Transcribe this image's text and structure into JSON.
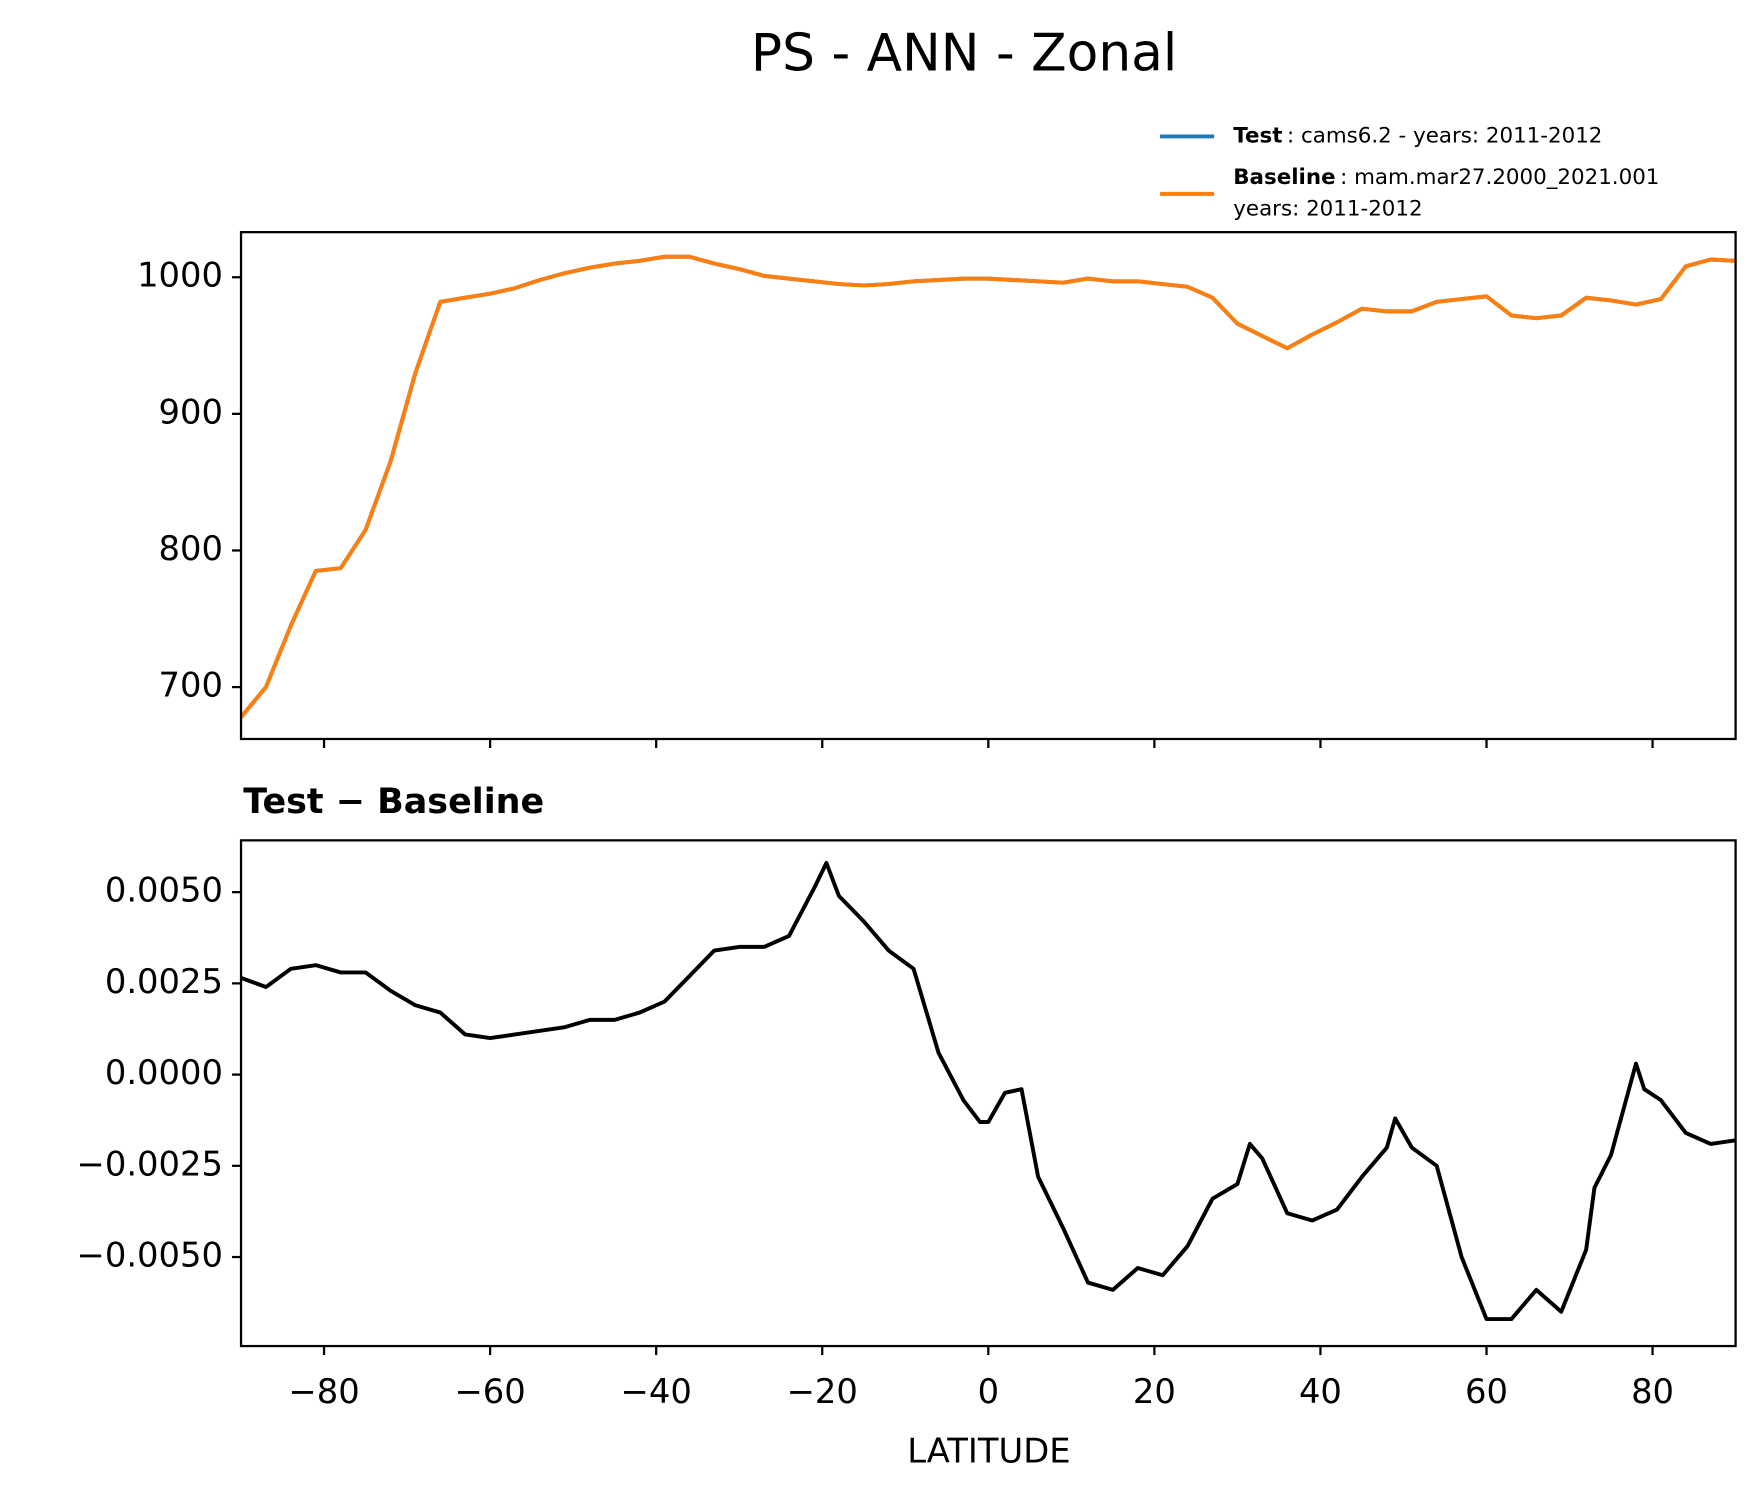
{
  "chart_data": [
    {
      "type": "line",
      "title": "PS - ANN - Zonal",
      "x": [
        -90,
        -87,
        -84,
        -81,
        -78,
        -75,
        -72,
        -69,
        -66,
        -63,
        -60,
        -57,
        -54,
        -51,
        -48,
        -45,
        -42,
        -39,
        -36,
        -33,
        -30,
        -27,
        -24,
        -21,
        -18,
        -15,
        -12,
        -9,
        -6,
        -3,
        0,
        3,
        6,
        9,
        12,
        15,
        18,
        21,
        24,
        27,
        30,
        33,
        36,
        39,
        42,
        45,
        48,
        51,
        54,
        57,
        60,
        63,
        66,
        69,
        72,
        75,
        78,
        81,
        84,
        87,
        90
      ],
      "series": [
        {
          "name": "Test",
          "description": [
            ": cams6.2 - years: 2011-2012"
          ],
          "color": "#1f77b4",
          "values": [
            678,
            700,
            745,
            785,
            787,
            815,
            865,
            930,
            982,
            985,
            988,
            992,
            998,
            1003,
            1007,
            1010,
            1012,
            1015,
            1015,
            1010,
            1006,
            1001,
            999,
            997,
            995,
            994,
            995,
            997,
            998,
            999,
            999,
            998,
            997,
            996,
            999,
            997,
            997,
            995,
            993,
            985,
            966,
            957,
            948,
            958,
            967,
            977,
            975,
            975,
            982,
            984,
            986,
            972,
            970,
            972,
            985,
            983,
            980,
            984,
            1008,
            1013,
            1012
          ]
        },
        {
          "name": "Baseline",
          "description": [
            ": mam.mar27.2000_2021.001",
            "years: 2011-2012"
          ],
          "color": "#ff7f0e",
          "values": [
            678,
            700,
            745,
            785,
            787,
            815,
            865,
            930,
            982,
            985,
            988,
            992,
            998,
            1003,
            1007,
            1010,
            1012,
            1015,
            1015,
            1010,
            1006,
            1001,
            999,
            997,
            995,
            994,
            995,
            997,
            998,
            999,
            999,
            998,
            997,
            996,
            999,
            997,
            997,
            995,
            993,
            985,
            966,
            957,
            948,
            958,
            967,
            977,
            975,
            975,
            982,
            984,
            986,
            972,
            970,
            972,
            985,
            983,
            980,
            984,
            1008,
            1013,
            1012
          ]
        }
      ],
      "xlim": [
        -90,
        90
      ],
      "ylim": [
        662,
        1033
      ],
      "xticks": [
        -80,
        -60,
        -40,
        -20,
        0,
        20,
        40,
        60,
        80
      ],
      "yticks": [
        700,
        800,
        900,
        1000
      ]
    },
    {
      "type": "line",
      "title": "Test − Baseline",
      "xlabel": "LATITUDE",
      "x": [
        -90,
        -87,
        -84,
        -81,
        -78,
        -75,
        -72,
        -69,
        -66,
        -63,
        -60,
        -57,
        -54,
        -51,
        -48,
        -45,
        -42,
        -39,
        -36,
        -33,
        -30,
        -27,
        -24,
        -21,
        -19.5,
        -18,
        -15,
        -12,
        -9,
        -6,
        -3,
        -1,
        0,
        2,
        4,
        6,
        9,
        12,
        15,
        18,
        21,
        24,
        27,
        30,
        31.5,
        33,
        36,
        39,
        42,
        45,
        48,
        49,
        51,
        54,
        57,
        60,
        63,
        66,
        69,
        72,
        73,
        75,
        78,
        79,
        81,
        84,
        87,
        90
      ],
      "series": [
        {
          "name": "Test − Baseline",
          "color": "#000000",
          "values": [
            0.00265,
            0.0024,
            0.0029,
            0.003,
            0.0028,
            0.0028,
            0.0023,
            0.0019,
            0.0017,
            0.0011,
            0.001,
            0.0011,
            0.0012,
            0.0013,
            0.0015,
            0.0015,
            0.0017,
            0.002,
            0.0027,
            0.0034,
            0.0035,
            0.0035,
            0.0038,
            0.0051,
            0.0058,
            0.0049,
            0.0042,
            0.0034,
            0.0029,
            0.0006,
            -0.0007,
            -0.0013,
            -0.0013,
            -0.0005,
            -0.0004,
            -0.0028,
            -0.0042,
            -0.0057,
            -0.0059,
            -0.0053,
            -0.0055,
            -0.0047,
            -0.0034,
            -0.003,
            -0.0019,
            -0.0023,
            -0.0038,
            -0.004,
            -0.0037,
            -0.0028,
            -0.002,
            -0.0012,
            -0.002,
            -0.0025,
            -0.005,
            -0.0067,
            -0.0067,
            -0.0059,
            -0.0065,
            -0.0048,
            -0.0031,
            -0.0022,
            0.0003,
            -0.0004,
            -0.0007,
            -0.0016,
            -0.0019,
            -0.0018
          ]
        }
      ],
      "xlim": [
        -90,
        90
      ],
      "ylim": [
        -0.00744,
        0.00642
      ],
      "xticks": [
        {
          "value": -80,
          "label": "−80"
        },
        {
          "value": -60,
          "label": "−60"
        },
        {
          "value": -40,
          "label": "−40"
        },
        {
          "value": -20,
          "label": "−20"
        },
        0,
        20,
        40,
        60,
        80
      ],
      "yticks": [
        {
          "value": -0.005,
          "label": "−0.0050"
        },
        {
          "value": -0.0025,
          "label": "−0.0025"
        },
        {
          "value": 0,
          "label": "0.0000"
        },
        {
          "value": 0.0025,
          "label": "0.0025"
        },
        {
          "value": 0.005,
          "label": "0.0050"
        }
      ]
    }
  ]
}
